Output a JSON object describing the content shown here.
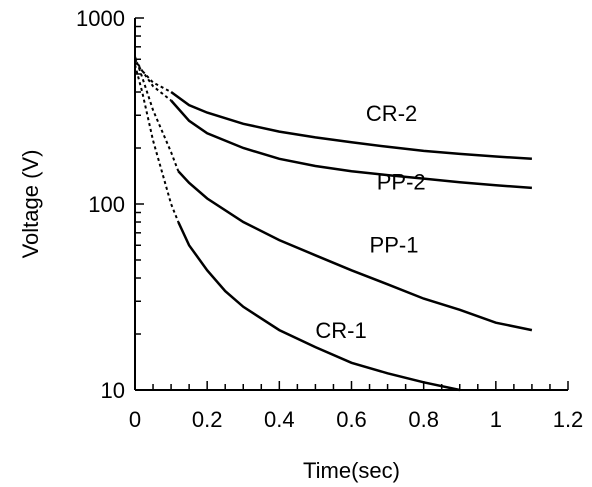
{
  "chart_data": {
    "type": "line",
    "xlabel": "Time(sec)",
    "ylabel": "Voltage (V)",
    "xlim": [
      0,
      1.2
    ],
    "ylim": [
      10,
      1000
    ],
    "yscale": "log",
    "xticks": [
      "0",
      "0.2",
      "0.4",
      "0.6",
      "0.8",
      "1",
      "1.2"
    ],
    "yticks": [
      "10",
      "100",
      "1000"
    ],
    "grid": false,
    "legend": "none",
    "series": [
      {
        "name": "CR-2",
        "x": [
          0,
          0.02,
          0.05,
          0.1,
          0.15,
          0.2,
          0.3,
          0.4,
          0.5,
          0.6,
          0.7,
          0.8,
          0.9,
          1.0,
          1.1
        ],
        "y": [
          580,
          520,
          450,
          400,
          340,
          310,
          270,
          245,
          228,
          215,
          203,
          193,
          186,
          180,
          175
        ]
      },
      {
        "name": "PP-2",
        "x": [
          0,
          0.02,
          0.05,
          0.1,
          0.15,
          0.2,
          0.3,
          0.4,
          0.5,
          0.6,
          0.7,
          0.8,
          0.9,
          1.0,
          1.1
        ],
        "y": [
          600,
          520,
          430,
          360,
          280,
          240,
          200,
          175,
          160,
          150,
          143,
          137,
          131,
          126,
          122
        ]
      },
      {
        "name": "PP-1",
        "x": [
          0,
          0.02,
          0.05,
          0.1,
          0.12,
          0.15,
          0.2,
          0.3,
          0.4,
          0.5,
          0.6,
          0.7,
          0.8,
          0.9,
          1.0,
          1.1
        ],
        "y": [
          620,
          480,
          320,
          190,
          150,
          130,
          107,
          80,
          64,
          53,
          44,
          37,
          31,
          27,
          23,
          21
        ]
      },
      {
        "name": "CR-1",
        "x": [
          0,
          0.02,
          0.05,
          0.1,
          0.12,
          0.15,
          0.2,
          0.25,
          0.3,
          0.4,
          0.5,
          0.6,
          0.7,
          0.8,
          0.9
        ],
        "y": [
          560,
          400,
          220,
          100,
          80,
          60,
          44,
          34,
          28,
          21,
          17,
          14,
          12.3,
          11,
          10
        ]
      }
    ],
    "labels": [
      {
        "text": "CR-2",
        "x": 0.64,
        "y": 280
      },
      {
        "text": "PP-2",
        "x": 0.67,
        "y": 120
      },
      {
        "text": "PP-1",
        "x": 0.65,
        "y": 55
      },
      {
        "text": "CR-1",
        "x": 0.5,
        "y": 19
      }
    ]
  }
}
